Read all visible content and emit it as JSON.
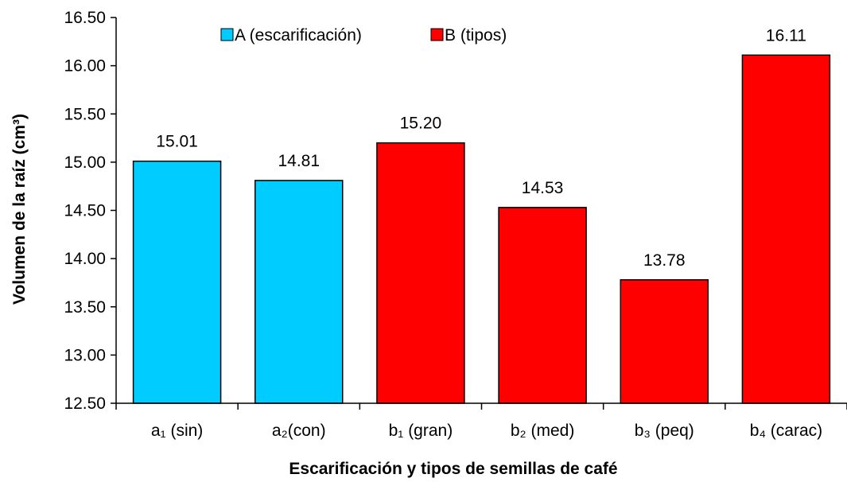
{
  "chart_data": {
    "type": "bar",
    "categories": [
      "a₁ (sin)",
      "a₂(con)",
      "b₁ (gran)",
      "b₂ (med)",
      "b₃ (peq)",
      "b₄ (carac)"
    ],
    "values": [
      15.01,
      14.81,
      15.2,
      14.53,
      13.78,
      16.11
    ],
    "value_labels": [
      "15.01",
      "14.81",
      "15.20",
      "14.53",
      "13.78",
      "16.11"
    ],
    "bar_groups": [
      "A",
      "A",
      "B",
      "B",
      "B",
      "B"
    ],
    "series": [
      {
        "id": "A",
        "name": "A (escarificación)",
        "color": "#00CCFF"
      },
      {
        "id": "B",
        "name": "B (tipos)",
        "color": "#FF0000"
      }
    ],
    "xlabel": "Escarificación y tipos de semillas de café",
    "ylabel": "Volumen de la raíz (cm³)",
    "ylim": [
      12.5,
      16.5
    ],
    "yticks": [
      "12.50",
      "13.00",
      "13.50",
      "14.00",
      "14.50",
      "15.00",
      "15.50",
      "16.00",
      "16.50"
    ],
    "grid": false,
    "legend_position": "top-center"
  }
}
